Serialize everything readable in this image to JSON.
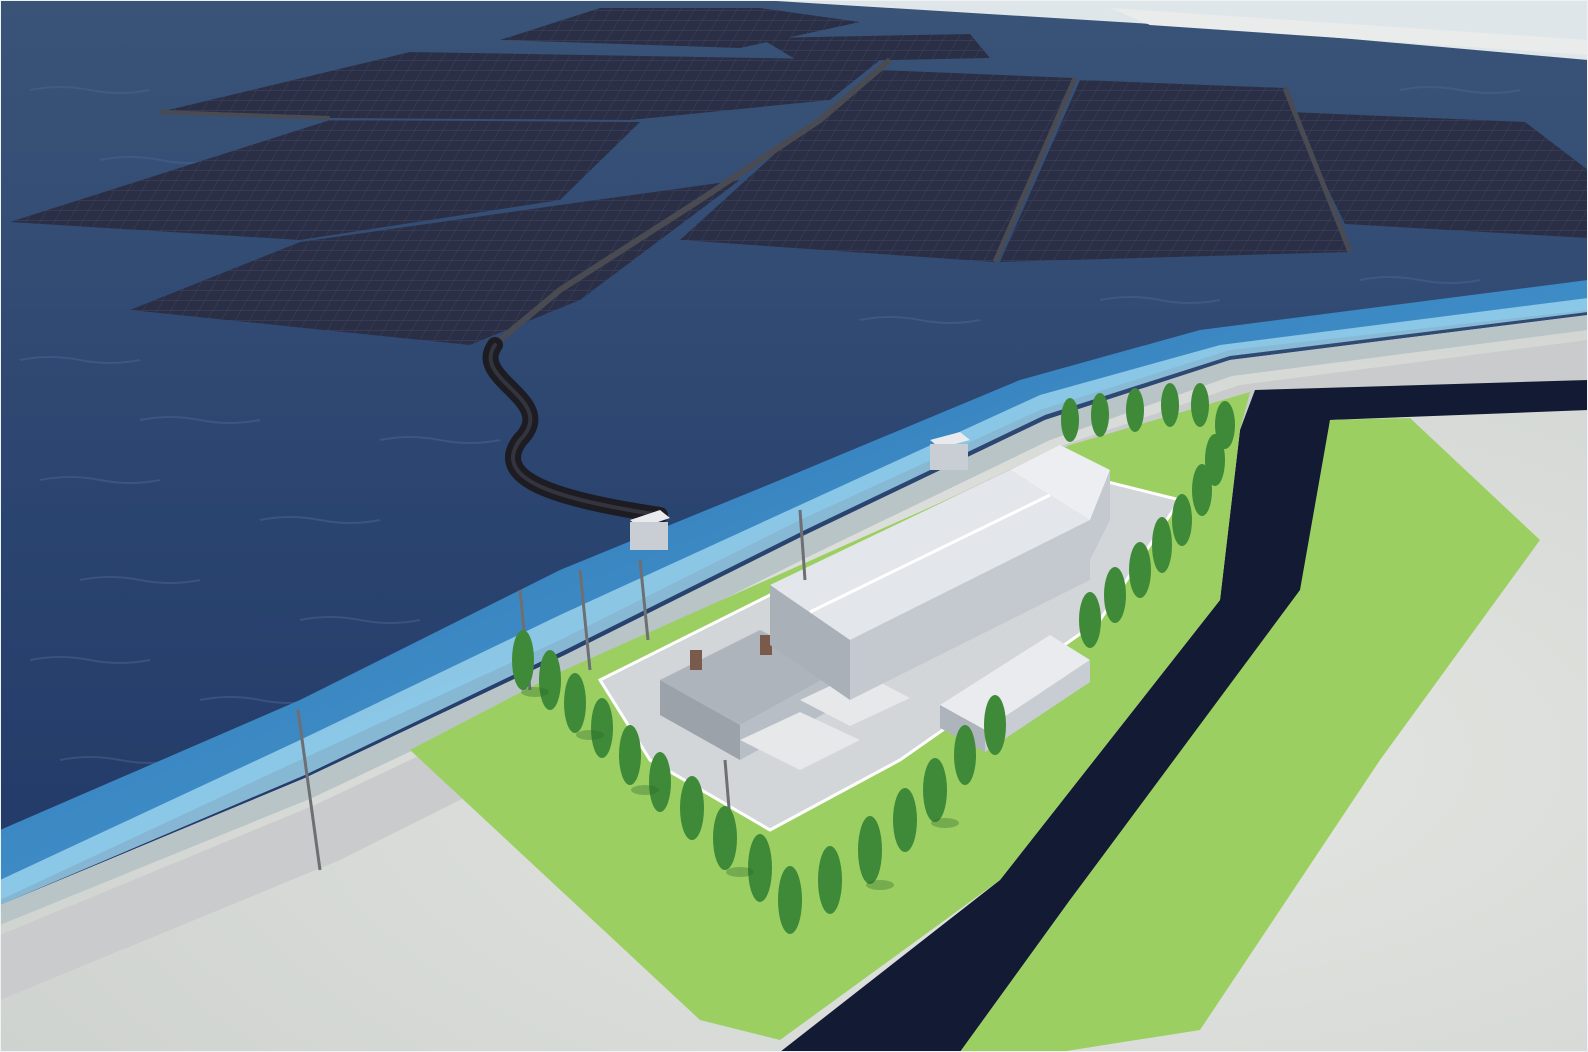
{
  "scene": {
    "subject": "floating-solar-farm-with-onshore-substation",
    "colors": {
      "sea_deep": "#22345a",
      "sea_mid": "#2d4a7a",
      "sea_shallow": "#2f86c6",
      "surf": "#9fd6ee",
      "panel": "#2b2f45",
      "panel_grid": "#3a3f58",
      "walkway": "#4a4a52",
      "cable": "#1c1c22",
      "road": "#c9cbcc",
      "seawall": "#b9c4c7",
      "sand": "#d9dcd8",
      "grass": "#9ccf62",
      "canal": "#131a33",
      "building_roof": "#e3e6ea",
      "building_wall": "#bfc4cb",
      "tree": "#3e8a38",
      "tree_dark": "#2c6a2a",
      "pole": "#6d6f73",
      "sky_haze": "#eef2f4"
    }
  }
}
